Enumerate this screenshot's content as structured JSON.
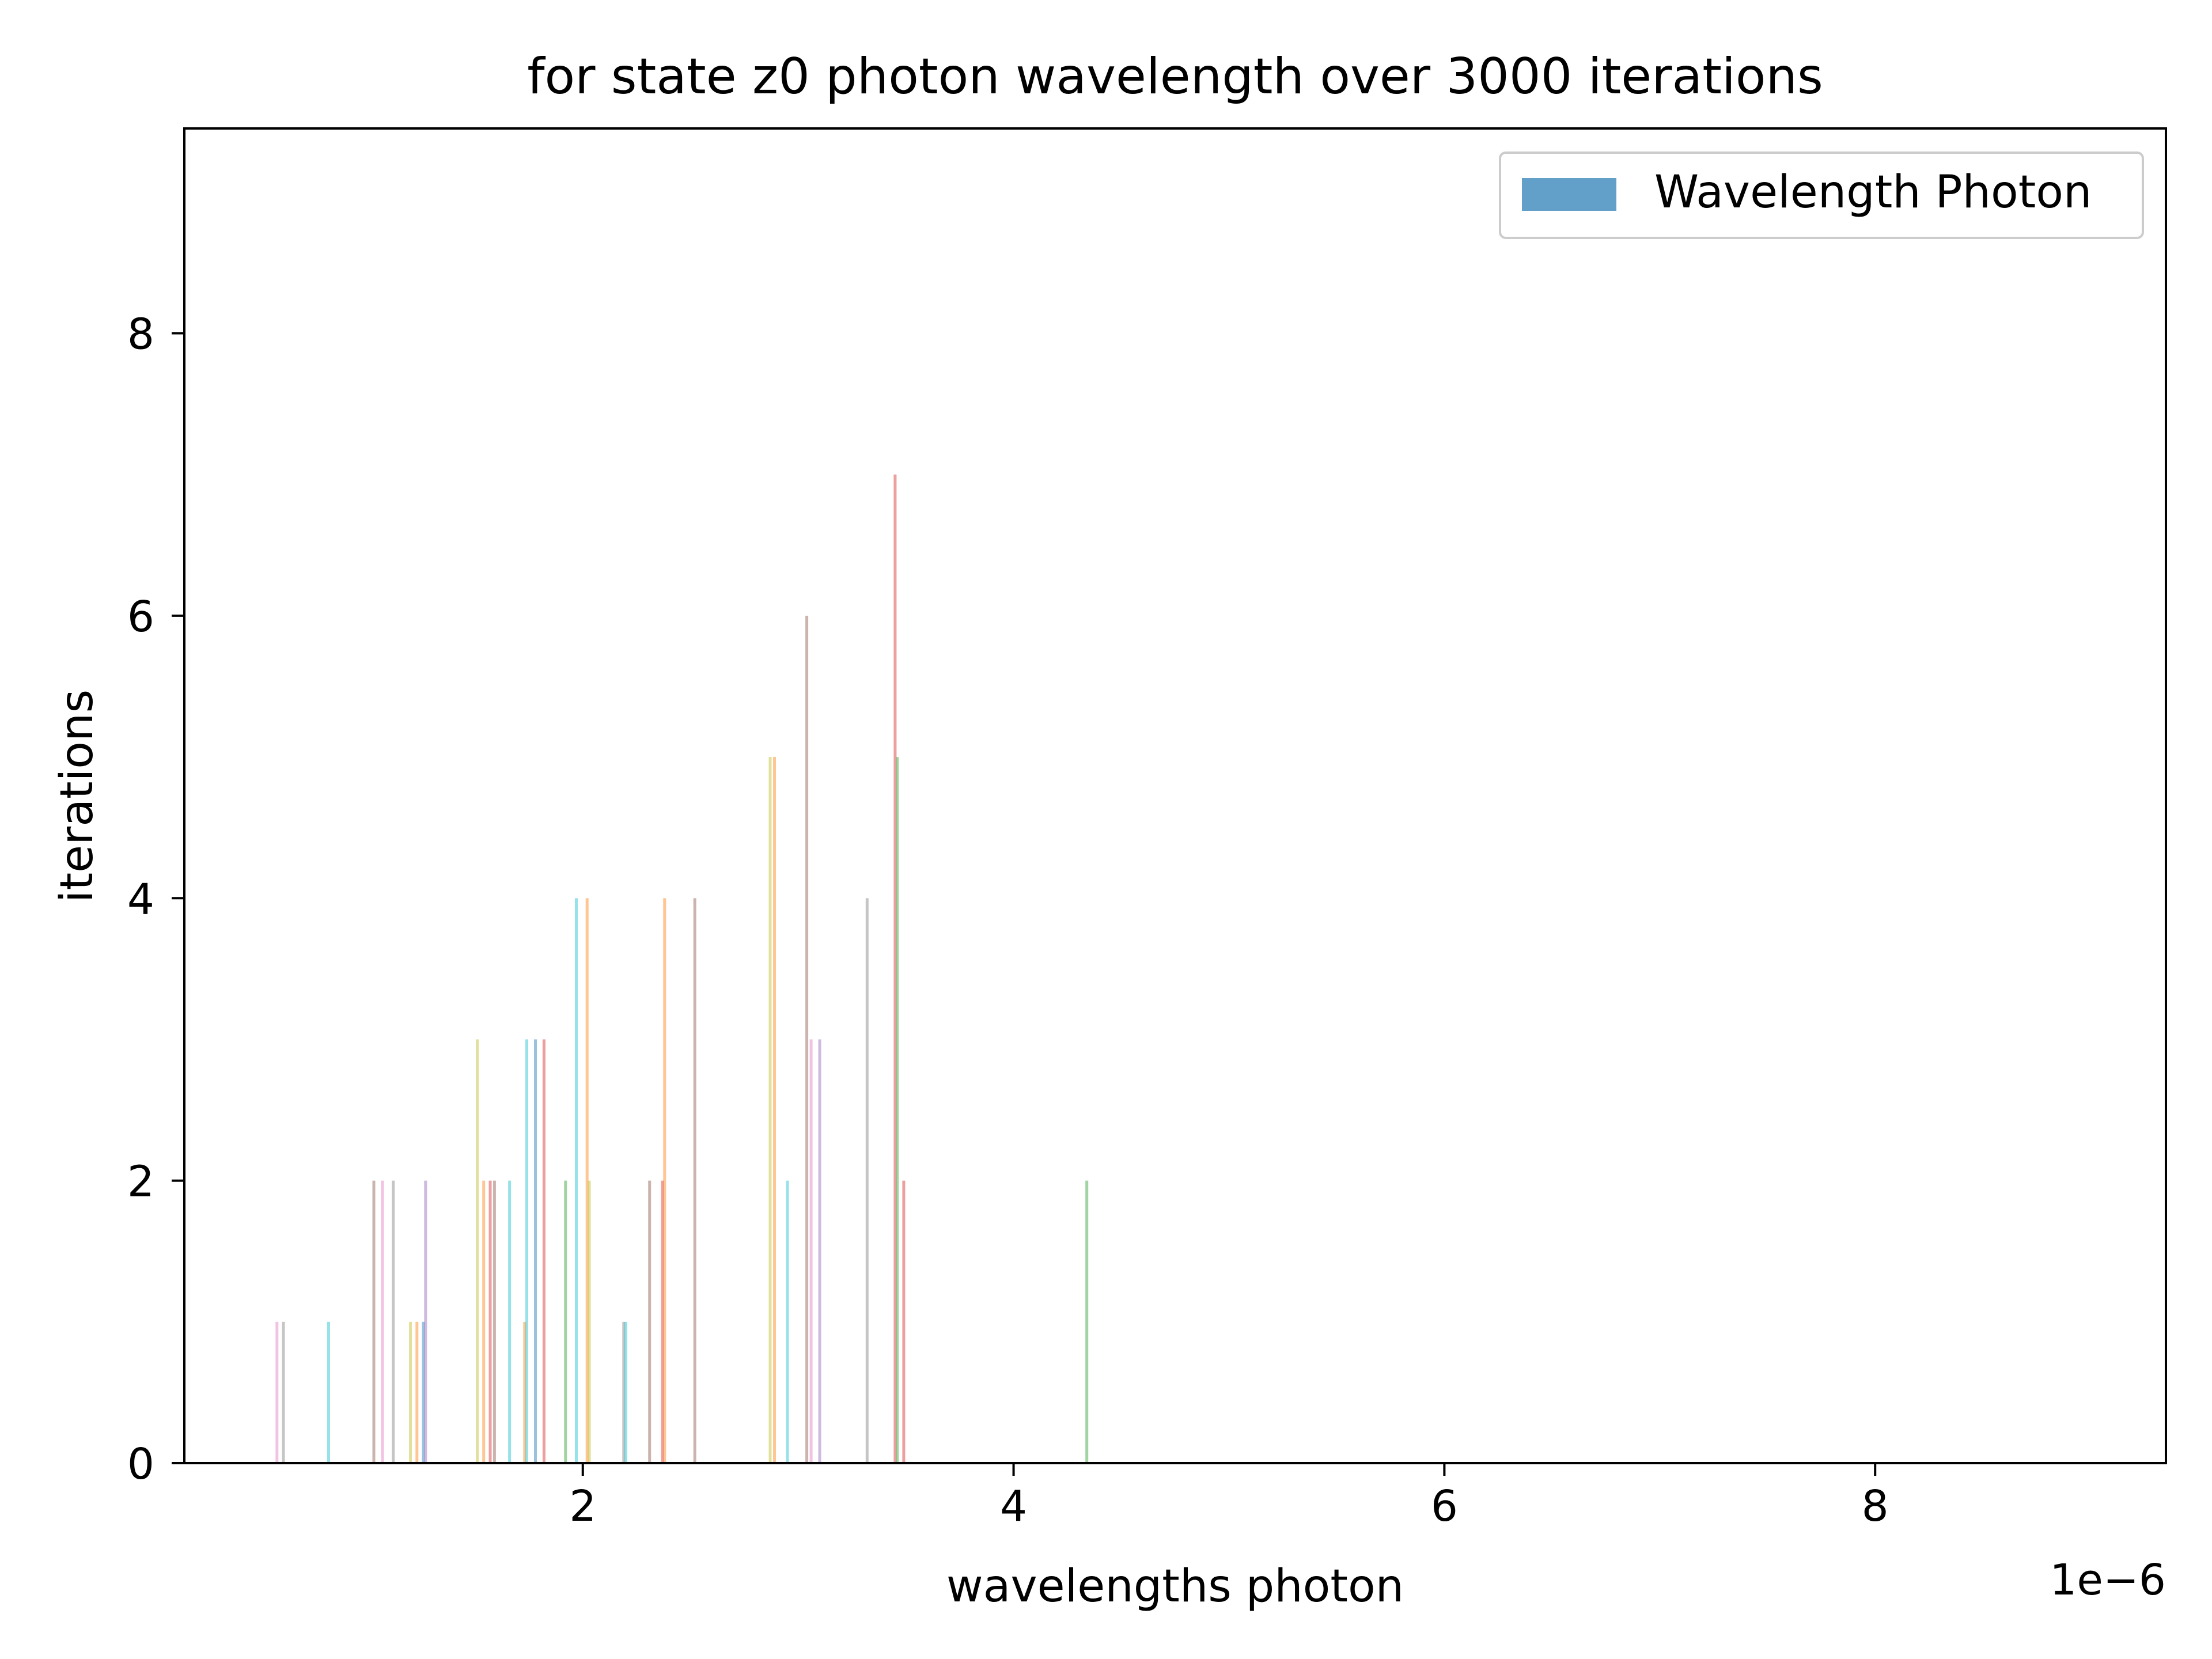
{
  "chart_data": {
    "type": "bar",
    "title": "for state z0 photon wavelength over 3000 iterations",
    "xlabel": "wavelengths photon",
    "ylabel": "iterations",
    "x_offset_text": "1e−6",
    "x_scale": 1e-06,
    "xlim": [
      0.15,
      9.35
    ],
    "ylim": [
      0,
      9.45
    ],
    "x_ticks": [
      2,
      4,
      6,
      8
    ],
    "y_ticks": [
      0,
      2,
      4,
      6,
      8
    ],
    "grid": false,
    "legend": {
      "position": "top-right",
      "entries": [
        {
          "label": "Wavelength Photon",
          "color": "#1f77b4"
        }
      ]
    },
    "bars": [
      {
        "x": 0.58,
        "value": 1,
        "color": "#e377c2"
      },
      {
        "x": 0.61,
        "value": 1,
        "color": "#7f7f7f"
      },
      {
        "x": 0.82,
        "value": 1,
        "color": "#17becf"
      },
      {
        "x": 1.03,
        "value": 2,
        "color": "#8c564b"
      },
      {
        "x": 1.07,
        "value": 2,
        "color": "#e377c2"
      },
      {
        "x": 1.12,
        "value": 2,
        "color": "#7f7f7f"
      },
      {
        "x": 1.2,
        "value": 1,
        "color": "#bcbd22"
      },
      {
        "x": 1.23,
        "value": 1,
        "color": "#ff7f0e"
      },
      {
        "x": 1.26,
        "value": 1,
        "color": "#1f77b4"
      },
      {
        "x": 1.27,
        "value": 2,
        "color": "#9467bd"
      },
      {
        "x": 1.51,
        "value": 3,
        "color": "#bcbd22"
      },
      {
        "x": 1.54,
        "value": 2,
        "color": "#ff7f0e"
      },
      {
        "x": 1.57,
        "value": 2,
        "color": "#d62728"
      },
      {
        "x": 1.59,
        "value": 2,
        "color": "#8c564b"
      },
      {
        "x": 1.66,
        "value": 2,
        "color": "#17becf"
      },
      {
        "x": 1.73,
        "value": 1,
        "color": "#ff7f0e"
      },
      {
        "x": 1.74,
        "value": 3,
        "color": "#17becf"
      },
      {
        "x": 1.78,
        "value": 3,
        "color": "#1f77b4"
      },
      {
        "x": 1.82,
        "value": 3,
        "color": "#d62728"
      },
      {
        "x": 1.92,
        "value": 2,
        "color": "#2ca02c"
      },
      {
        "x": 1.97,
        "value": 4,
        "color": "#17becf"
      },
      {
        "x": 2.02,
        "value": 4,
        "color": "#ff7f0e"
      },
      {
        "x": 2.03,
        "value": 2,
        "color": "#bcbd22"
      },
      {
        "x": 2.19,
        "value": 1,
        "color": "#7f7f7f"
      },
      {
        "x": 2.2,
        "value": 1,
        "color": "#17becf"
      },
      {
        "x": 2.31,
        "value": 2,
        "color": "#8c564b"
      },
      {
        "x": 2.37,
        "value": 2,
        "color": "#d62728"
      },
      {
        "x": 2.38,
        "value": 4,
        "color": "#ff7f0e"
      },
      {
        "x": 2.52,
        "value": 4,
        "color": "#8c564b"
      },
      {
        "x": 2.87,
        "value": 5,
        "color": "#bcbd22"
      },
      {
        "x": 2.89,
        "value": 5,
        "color": "#ff7f0e"
      },
      {
        "x": 2.95,
        "value": 2,
        "color": "#17becf"
      },
      {
        "x": 3.04,
        "value": 6,
        "color": "#8c564b"
      },
      {
        "x": 3.06,
        "value": 3,
        "color": "#e377c2"
      },
      {
        "x": 3.1,
        "value": 3,
        "color": "#9467bd"
      },
      {
        "x": 3.32,
        "value": 4,
        "color": "#7f7f7f"
      },
      {
        "x": 3.45,
        "value": 7,
        "color": "#d62728"
      },
      {
        "x": 3.46,
        "value": 5,
        "color": "#2ca02c"
      },
      {
        "x": 3.49,
        "value": 2,
        "color": "#d62728"
      },
      {
        "x": 4.34,
        "value": 2,
        "color": "#2ca02c"
      }
    ]
  }
}
